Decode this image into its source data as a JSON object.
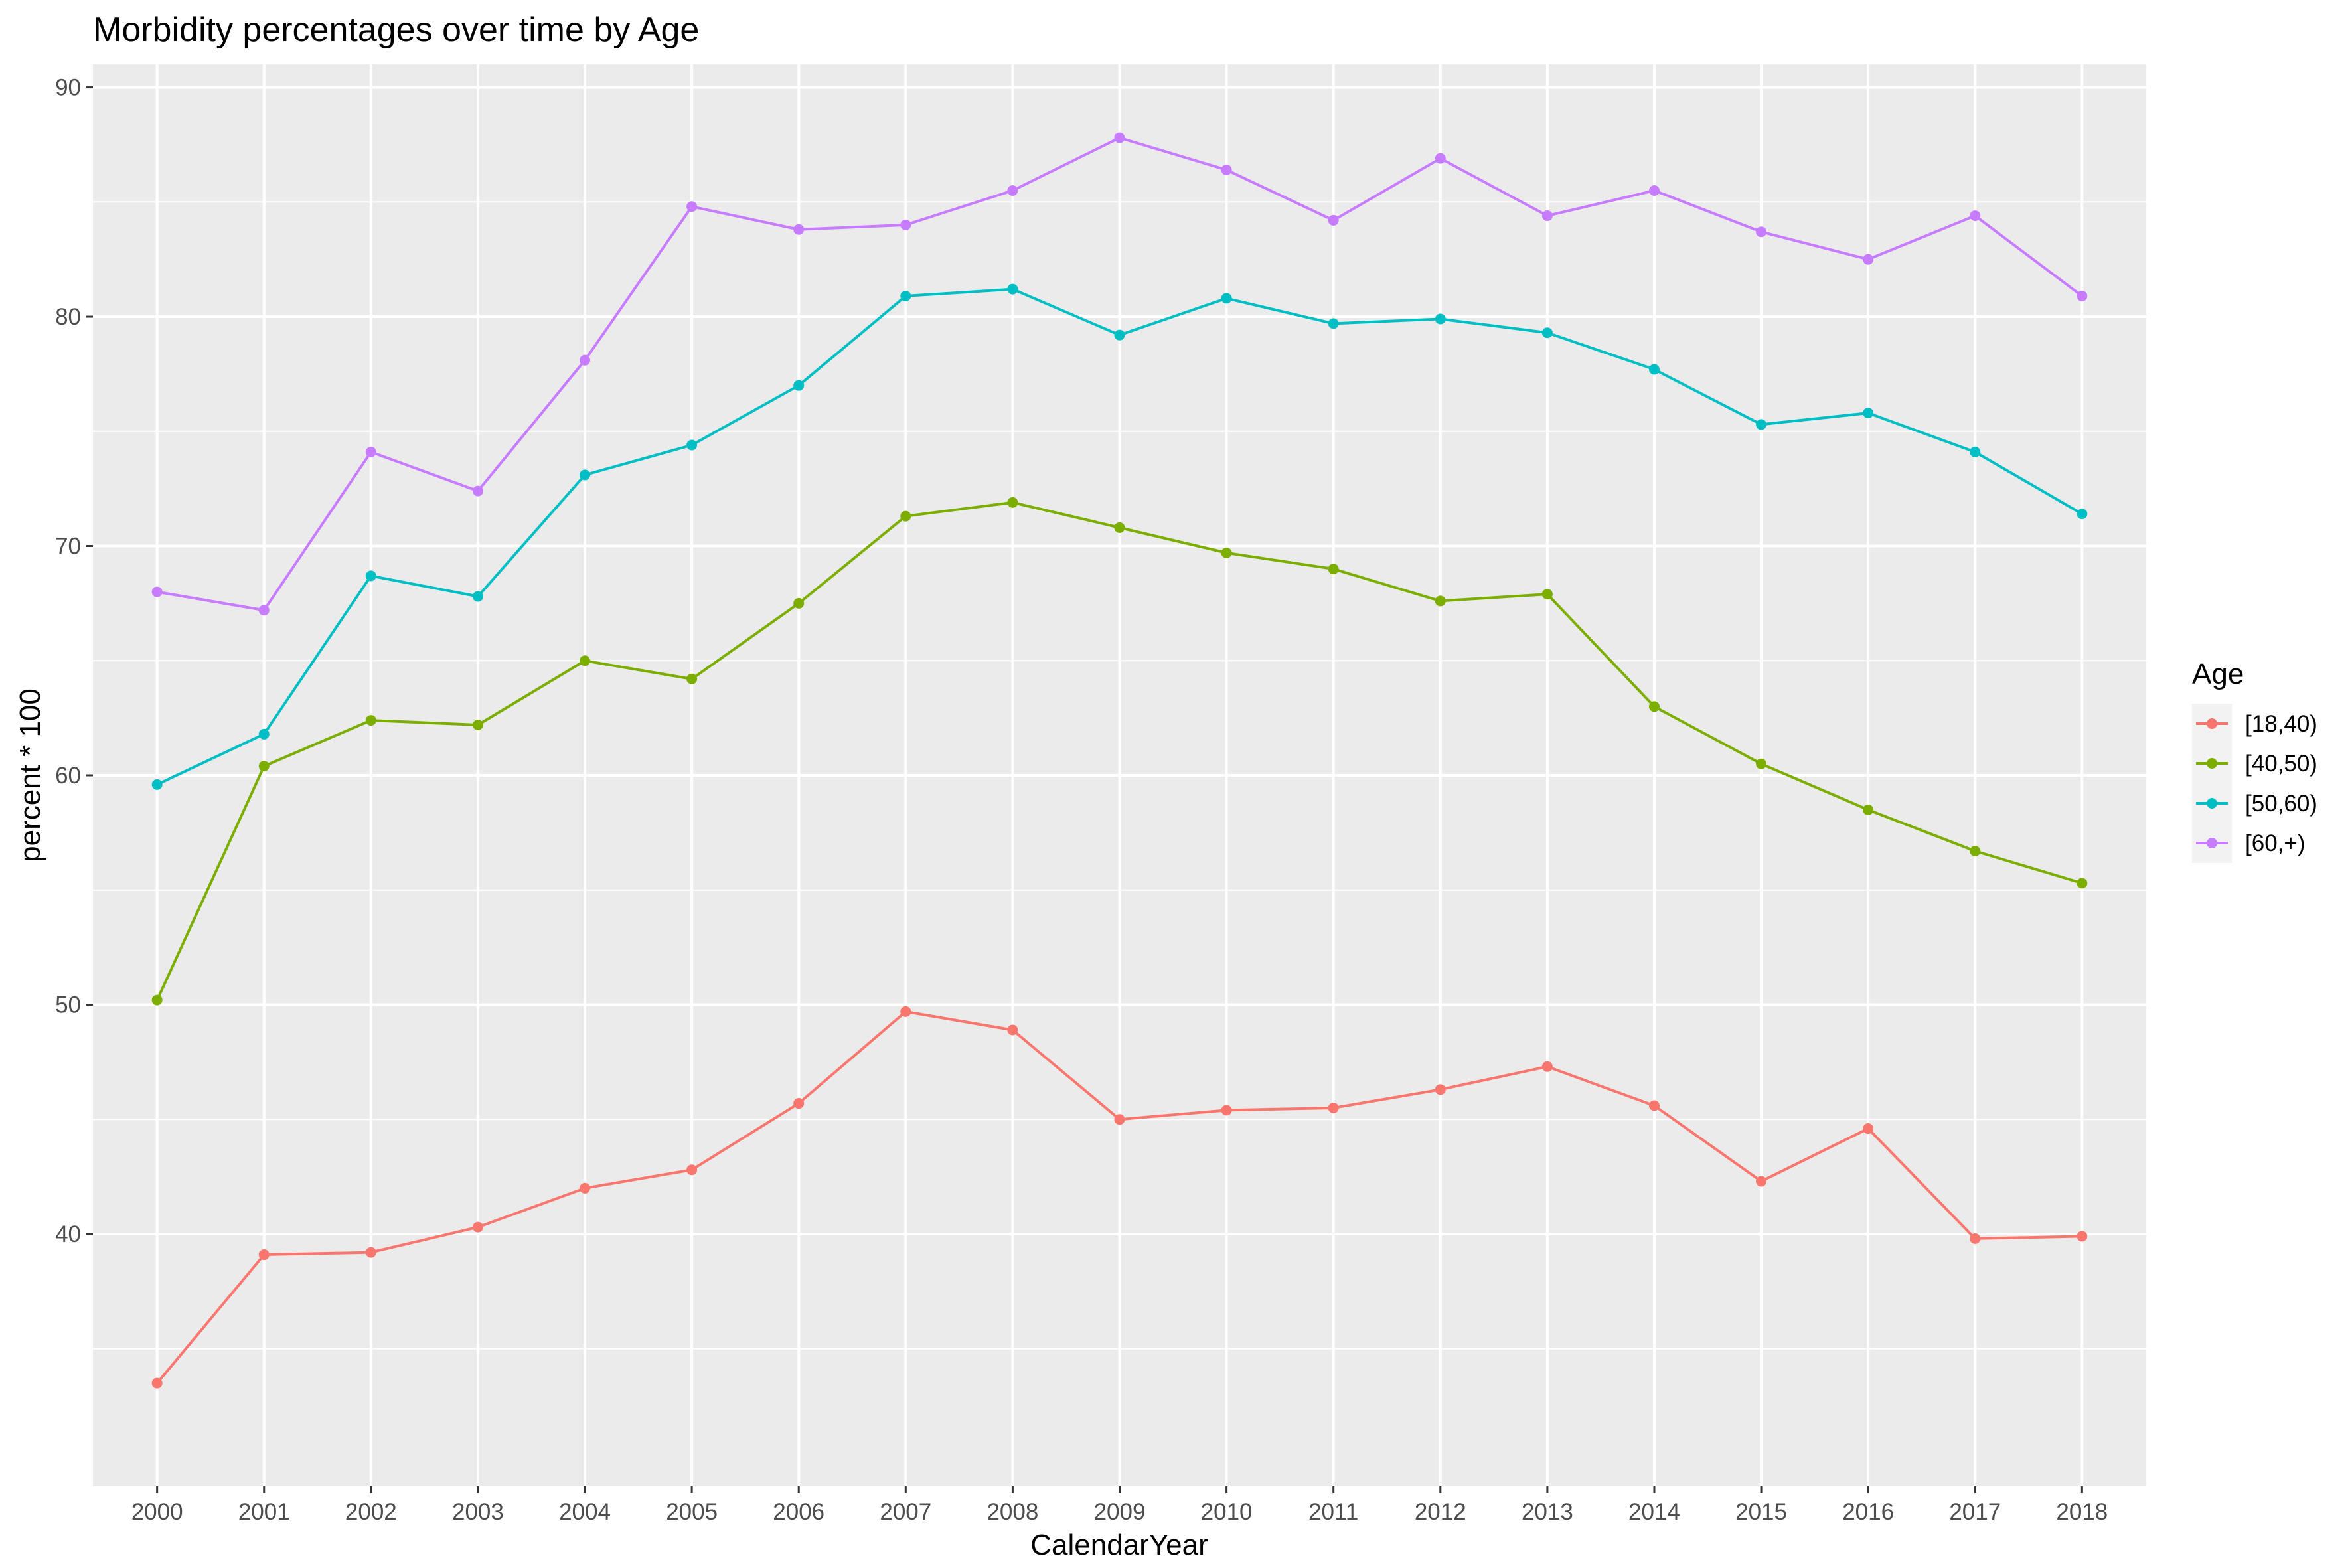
{
  "chart_data": {
    "type": "line",
    "title": "Morbidity percentages over time by Age",
    "xlabel": "CalendarYear",
    "ylabel": "percent * 100",
    "x": [
      2000,
      2001,
      2002,
      2003,
      2004,
      2005,
      2006,
      2007,
      2008,
      2009,
      2010,
      2011,
      2012,
      2013,
      2014,
      2015,
      2016,
      2017,
      2018
    ],
    "ylim": [
      29,
      91
    ],
    "yticks": [
      40,
      50,
      60,
      70,
      80,
      90
    ],
    "grid": true,
    "legend_title": "Age",
    "legend_position": "right",
    "series": [
      {
        "name": "[18,40)",
        "color": "#f8766d",
        "values": [
          33.5,
          39.1,
          39.2,
          40.3,
          42.0,
          42.8,
          45.7,
          49.7,
          48.9,
          45.0,
          45.4,
          45.5,
          46.3,
          47.3,
          45.6,
          42.3,
          44.6,
          39.8,
          39.9
        ]
      },
      {
        "name": "[40,50)",
        "color": "#7cae00",
        "values": [
          50.2,
          60.4,
          62.4,
          62.2,
          65.0,
          64.2,
          67.5,
          71.3,
          71.9,
          70.8,
          69.7,
          69.0,
          67.6,
          67.9,
          63.0,
          60.5,
          58.5,
          56.7,
          55.3
        ]
      },
      {
        "name": "[50,60)",
        "color": "#00bfc4",
        "values": [
          59.6,
          61.8,
          68.7,
          67.8,
          73.1,
          74.4,
          77.0,
          80.9,
          81.2,
          79.2,
          80.8,
          79.7,
          79.9,
          79.3,
          77.7,
          75.3,
          75.8,
          74.1,
          71.4
        ]
      },
      {
        "name": "[60,+)",
        "color": "#c77cff",
        "values": [
          68.0,
          67.2,
          74.1,
          72.4,
          78.1,
          84.8,
          83.8,
          84.0,
          85.5,
          87.8,
          86.4,
          84.2,
          86.9,
          84.4,
          85.5,
          83.7,
          82.5,
          84.4,
          80.9
        ]
      }
    ]
  }
}
